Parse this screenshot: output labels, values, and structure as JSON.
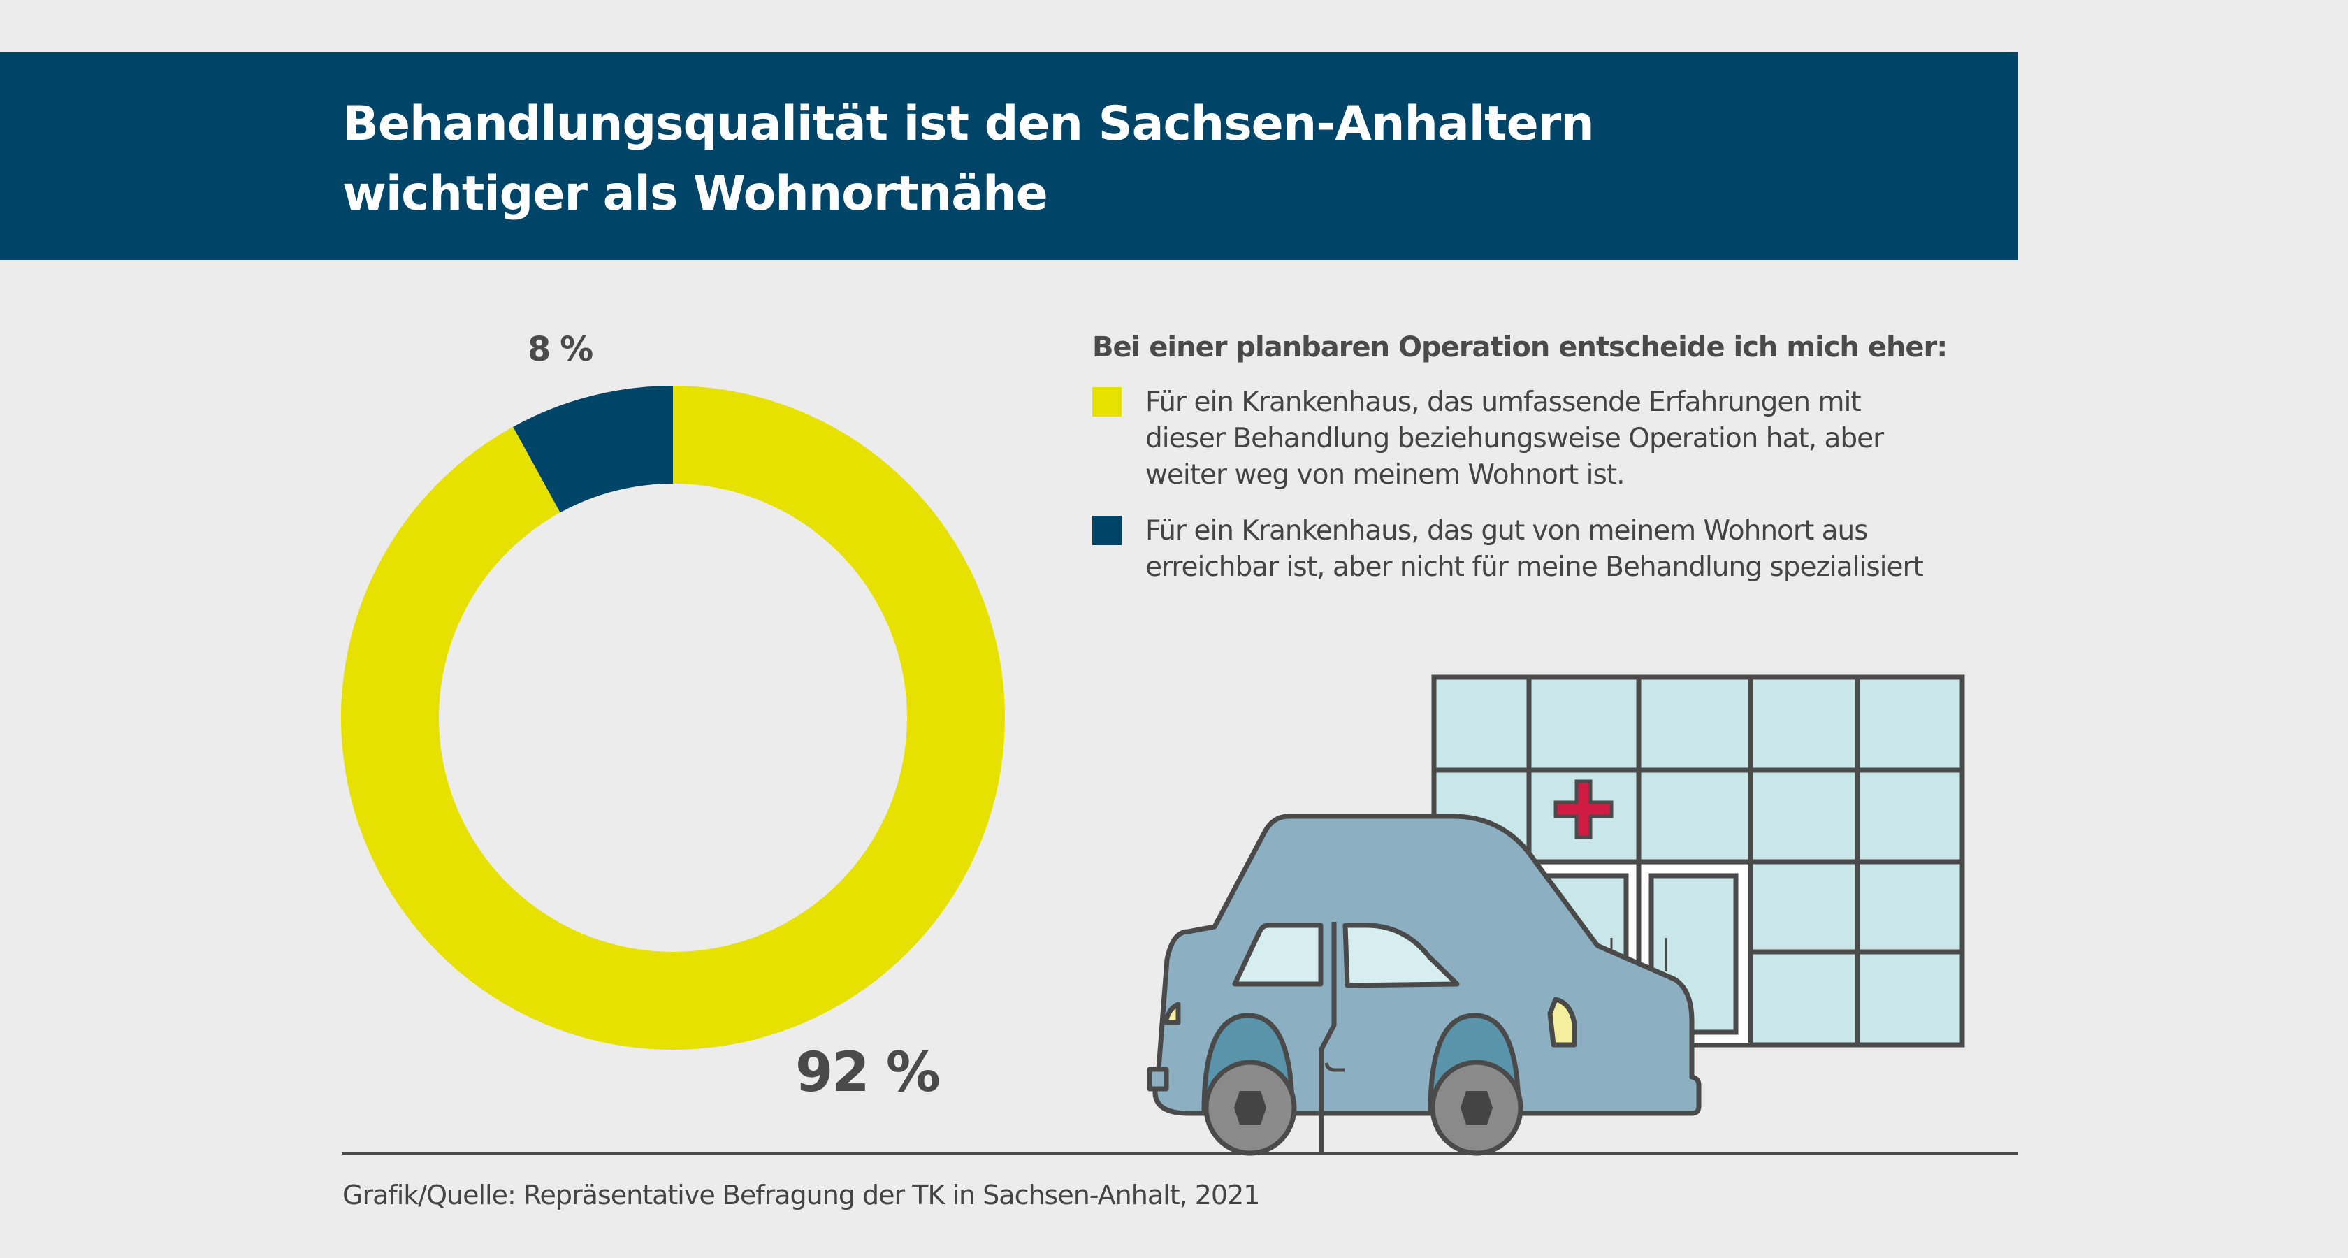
{
  "header": {
    "title_line1": "Behandlungsqualität ist den Sachsen-Anhaltern",
    "title_line2": "wichtiger als Wohnortnähe",
    "background_color": "#004567"
  },
  "chart_data": {
    "type": "pie",
    "variant": "donut",
    "title": "Bei einer planbaren Operation entscheide ich mich eher:",
    "slices": [
      {
        "label": "Für ein Krankenhaus, das umfassende Erfahrungen mit dieser Behandlung beziehungsweise Operation hat, aber weiter weg von meinem Wohnort ist.",
        "value": 92,
        "display": "92 %",
        "color": "#e6e100"
      },
      {
        "label": "Für ein Krankenhaus, das gut von meinem Wohnort aus erreichbar ist, aber nicht für meine Behandlung spezialisiert",
        "value": 8,
        "display": "8 %",
        "color": "#004567"
      }
    ],
    "unit": "%",
    "start_angle": "12 o'clock",
    "direction": "clockwise for 92% slice",
    "legend_position": "right"
  },
  "legend": {
    "heading": "Bei einer planbaren Operation entscheide ich mich eher:",
    "items": [
      {
        "line1": "Für ein Krankenhaus, das umfassende Erfahrungen mit",
        "line2": "dieser Behandlung beziehungsweise Operation hat, aber",
        "line3": "weiter weg von meinem Wohnort ist.",
        "color": "#e6e100"
      },
      {
        "line1": "Für ein Krankenhaus, das gut von meinem Wohnort aus",
        "line2": "erreichbar ist, aber nicht für meine Behandlung spezialisiert",
        "color": "#004567"
      }
    ]
  },
  "labels": {
    "small_pct": "8 %",
    "big_pct": "92 %"
  },
  "illustration": {
    "subject": "hospital-with-car",
    "colors": {
      "glass": "#c9e6e8",
      "outline": "#4a4a4a",
      "cross": "#d01c43",
      "car_body": "#8cb0c2",
      "wheel_arch": "#5a94ab",
      "tire": "#8a8a8a",
      "hub": "#444444",
      "headlight": "#f3ef9f"
    }
  },
  "footer": {
    "source": "Grafik/Quelle: Repräsentative Befragung der TK in Sachsen-Anhalt, 2021"
  }
}
